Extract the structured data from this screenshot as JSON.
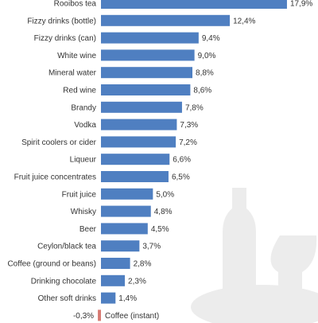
{
  "chart_data": {
    "type": "bar",
    "orientation": "horizontal",
    "categories": [
      "Rooibos tea",
      "Fizzy drinks (bottle)",
      "Fizzy drinks (can)",
      "White wine",
      "Mineral water",
      "Red wine",
      "Brandy",
      "Vodka",
      "Spirit coolers or cider",
      "Liqueur",
      "Fruit juice concentrates",
      "Fruit juice",
      "Whisky",
      "Beer",
      "Ceylon/black tea",
      "Coffee (ground or beans)",
      "Drinking chocolate",
      "Other soft drinks",
      "Coffee (instant)"
    ],
    "values": [
      17.9,
      12.4,
      9.4,
      9.0,
      8.8,
      8.6,
      7.8,
      7.3,
      7.2,
      6.6,
      6.5,
      5.0,
      4.8,
      4.5,
      3.7,
      2.8,
      2.3,
      1.4,
      -0.3
    ],
    "value_labels": [
      "17,9%",
      "12,4%",
      "9,4%",
      "9,0%",
      "8,8%",
      "8,6%",
      "7,8%",
      "7,3%",
      "7,2%",
      "6,6%",
      "6,5%",
      "5,0%",
      "4,8%",
      "4,5%",
      "3,7%",
      "2,8%",
      "2,3%",
      "1,4%",
      "-0,3%"
    ],
    "title": "",
    "xlabel": "",
    "ylabel": "",
    "grid": false,
    "colors": {
      "positive_bar": "#4f7fc1",
      "negative_bar": "#d77a72",
      "negative_text": "#c0504d",
      "watermark": "#ececec"
    }
  }
}
